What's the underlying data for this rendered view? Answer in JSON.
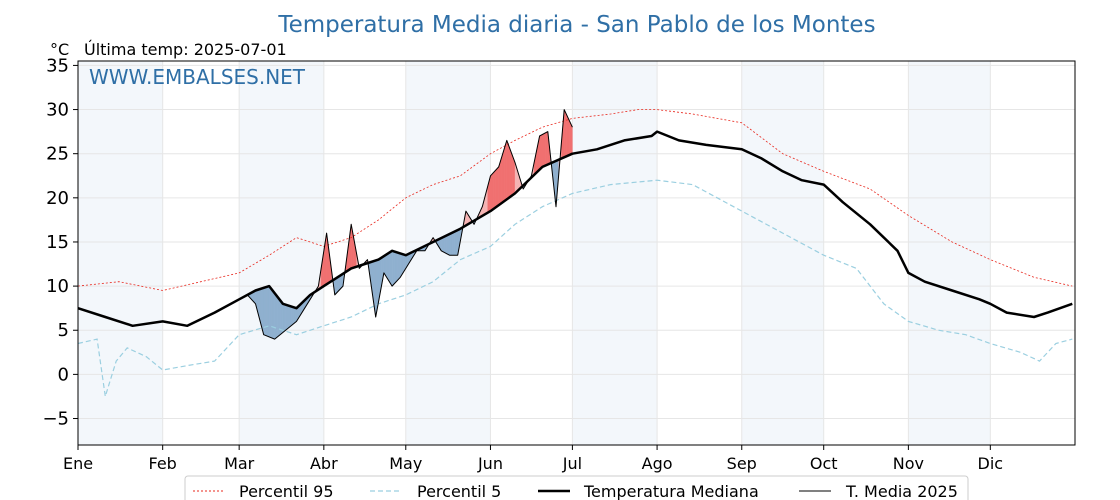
{
  "chart_data": {
    "type": "line",
    "title": "Temperatura Media diaria - San Pablo de los Montes",
    "unit": "°C",
    "last_temp": "Última temp: 2025-07-01",
    "watermark": "WWW.EMBALSES.NET",
    "ylim": [
      -8,
      35.5
    ],
    "yticks": [
      -5,
      0,
      5,
      10,
      15,
      20,
      25,
      30,
      35
    ],
    "months": [
      "Ene",
      "Feb",
      "Mar",
      "Abr",
      "May",
      "Jun",
      "Jul",
      "Ago",
      "Sep",
      "Oct",
      "Nov",
      "Dic"
    ],
    "month_start_days": [
      0,
      31,
      59,
      90,
      120,
      151,
      181,
      212,
      243,
      273,
      304,
      334
    ],
    "days_in_year": 365,
    "grid": true,
    "legend_position": "bottom",
    "series": [
      {
        "name": "Percentil 95",
        "style": "dotted",
        "color": "#e8281e",
        "x_days": [
          0,
          15,
          31,
          45,
          59,
          70,
          80,
          90,
          100,
          110,
          120,
          130,
          140,
          151,
          160,
          170,
          181,
          195,
          205,
          212,
          225,
          243,
          258,
          273,
          290,
          304,
          320,
          334,
          350,
          364
        ],
        "values": [
          10,
          10.5,
          9.5,
          10.5,
          11.5,
          13.5,
          15.5,
          14.5,
          15.5,
          17.5,
          20,
          21.5,
          22.5,
          25,
          26.5,
          28,
          29,
          29.5,
          30,
          30,
          29.5,
          28.5,
          25,
          23,
          21,
          18,
          15,
          13,
          11,
          10
        ]
      },
      {
        "name": "Percentil 5",
        "style": "dashed",
        "color": "#9bcfe0",
        "x_days": [
          0,
          7,
          10,
          14,
          18,
          25,
          31,
          40,
          50,
          59,
          70,
          80,
          90,
          100,
          110,
          120,
          130,
          140,
          151,
          160,
          170,
          181,
          195,
          212,
          225,
          243,
          258,
          273,
          285,
          295,
          304,
          315,
          325,
          334,
          345,
          352,
          358,
          364
        ],
        "values": [
          3.5,
          4,
          -2.5,
          1.5,
          3,
          2,
          0.5,
          1,
          1.5,
          4.5,
          5.5,
          4.5,
          5.5,
          6.5,
          8,
          9,
          10.5,
          13,
          14.5,
          17,
          19,
          20.5,
          21.5,
          22,
          21.5,
          18.5,
          16,
          13.5,
          12,
          8,
          6,
          5,
          4.5,
          3.5,
          2.5,
          1.5,
          3.5,
          4
        ]
      },
      {
        "name": "Temperatura Mediana",
        "style": "solid-thick",
        "color": "#000000",
        "x_days": [
          0,
          10,
          20,
          31,
          40,
          50,
          59,
          65,
          70,
          75,
          80,
          85,
          90,
          95,
          100,
          105,
          110,
          115,
          120,
          130,
          140,
          151,
          160,
          170,
          181,
          190,
          200,
          210,
          212,
          220,
          230,
          243,
          250,
          258,
          265,
          273,
          280,
          290,
          300,
          304,
          310,
          320,
          330,
          334,
          340,
          350,
          355,
          364
        ],
        "values": [
          7.5,
          6.5,
          5.5,
          6,
          5.5,
          7,
          8.5,
          9.5,
          10,
          8,
          7.5,
          9,
          10,
          11,
          12,
          12.5,
          13,
          14,
          13.5,
          15,
          16.5,
          18.5,
          20.5,
          23.5,
          25,
          25.5,
          26.5,
          27,
          27.5,
          26.5,
          26,
          25.5,
          24.5,
          23,
          22,
          21.5,
          19.5,
          17,
          14,
          11.5,
          10.5,
          9.5,
          8.5,
          8,
          7,
          6.5,
          7,
          8
        ]
      },
      {
        "name": "T. Media 2025",
        "style": "solid-thin",
        "color": "#000000",
        "x_days": [
          0,
          10,
          20,
          31,
          40,
          50,
          59,
          62,
          65,
          68,
          72,
          76,
          80,
          84,
          88,
          91,
          94,
          97,
          100,
          103,
          106,
          109,
          112,
          115,
          118,
          121,
          124,
          127,
          130,
          133,
          136,
          139,
          142,
          145,
          148,
          151,
          154,
          157,
          160,
          163,
          166,
          169,
          172,
          175,
          178,
          181
        ],
        "values": [
          7.5,
          6.5,
          5.5,
          6,
          5.5,
          7,
          8.5,
          9,
          8,
          4.5,
          4,
          5,
          6,
          8,
          10,
          16,
          9,
          10,
          17,
          12,
          13,
          6.5,
          11.5,
          10,
          11,
          12.5,
          14,
          14,
          15.5,
          14,
          13.5,
          13.5,
          18.5,
          17,
          19,
          22.5,
          23.5,
          26.5,
          24,
          21,
          22.5,
          27,
          27.5,
          19,
          30,
          28
        ]
      }
    ]
  }
}
